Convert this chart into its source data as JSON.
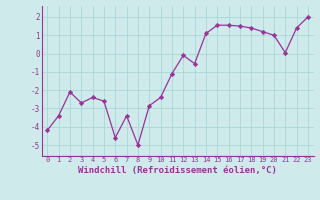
{
  "x": [
    0,
    1,
    2,
    3,
    4,
    5,
    6,
    7,
    8,
    9,
    10,
    11,
    12,
    13,
    14,
    15,
    16,
    17,
    18,
    19,
    20,
    21,
    22,
    23
  ],
  "y": [
    -4.2,
    -3.4,
    -2.1,
    -2.7,
    -2.4,
    -2.6,
    -4.6,
    -3.4,
    -5.0,
    -2.85,
    -2.4,
    -1.1,
    -0.1,
    -0.55,
    1.1,
    1.55,
    1.55,
    1.5,
    1.4,
    1.2,
    1.0,
    0.05,
    1.4,
    2.0
  ],
  "line_color": "#993399",
  "marker": "D",
  "marker_size": 2.2,
  "linewidth": 0.9,
  "bg_color": "#ceeaea",
  "grid_color": "#a8d8d8",
  "xlabel": "Windchill (Refroidissement éolien,°C)",
  "xlabel_fontsize": 6.5,
  "yticks": [
    -5,
    -4,
    -3,
    -2,
    -1,
    0,
    1,
    2
  ],
  "xtick_fontsize": 5.0,
  "ytick_fontsize": 5.5,
  "ylim": [
    -5.6,
    2.6
  ],
  "xlim": [
    -0.5,
    23.5
  ]
}
